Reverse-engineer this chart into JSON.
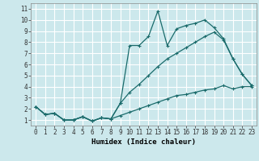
{
  "xlabel": "Humidex (Indice chaleur)",
  "background_color": "#cce8ec",
  "grid_color": "#ffffff",
  "line_color": "#1a6b6b",
  "xlim": [
    -0.5,
    23.5
  ],
  "ylim": [
    0.5,
    11.5
  ],
  "xticks": [
    0,
    1,
    2,
    3,
    4,
    5,
    6,
    7,
    8,
    9,
    10,
    11,
    12,
    13,
    14,
    15,
    16,
    17,
    18,
    19,
    20,
    21,
    22,
    23
  ],
  "yticks": [
    1,
    2,
    3,
    4,
    5,
    6,
    7,
    8,
    9,
    10,
    11
  ],
  "line1_x": [
    0,
    1,
    2,
    3,
    4,
    5,
    6,
    7,
    8,
    9,
    10,
    11,
    12,
    13,
    14,
    15,
    16,
    17,
    18,
    19,
    20,
    21,
    22,
    23
  ],
  "line1_y": [
    2.2,
    1.5,
    1.6,
    1.0,
    1.0,
    1.3,
    0.9,
    1.2,
    1.1,
    2.5,
    7.7,
    7.7,
    8.5,
    10.8,
    7.7,
    9.2,
    9.5,
    9.7,
    10.0,
    9.3,
    8.3,
    6.5,
    5.1,
    4.1
  ],
  "line2_x": [
    0,
    1,
    2,
    3,
    4,
    5,
    6,
    7,
    8,
    9,
    10,
    11,
    12,
    13,
    14,
    15,
    16,
    17,
    18,
    19,
    20,
    21,
    22,
    23
  ],
  "line2_y": [
    2.2,
    1.5,
    1.6,
    1.0,
    1.0,
    1.3,
    0.9,
    1.2,
    1.1,
    2.5,
    3.5,
    4.2,
    5.0,
    5.8,
    6.5,
    7.0,
    7.5,
    8.0,
    8.5,
    8.9,
    8.2,
    6.5,
    5.1,
    4.1
  ],
  "line3_x": [
    0,
    1,
    2,
    3,
    4,
    5,
    6,
    7,
    8,
    9,
    10,
    11,
    12,
    13,
    14,
    15,
    16,
    17,
    18,
    19,
    20,
    21,
    22,
    23
  ],
  "line3_y": [
    2.2,
    1.5,
    1.6,
    1.0,
    1.0,
    1.3,
    0.9,
    1.2,
    1.1,
    1.4,
    1.7,
    2.0,
    2.3,
    2.6,
    2.9,
    3.2,
    3.3,
    3.5,
    3.7,
    3.8,
    4.1,
    3.8,
    4.0,
    4.0
  ],
  "tick_fontsize": 5.5,
  "label_fontsize": 6.5
}
